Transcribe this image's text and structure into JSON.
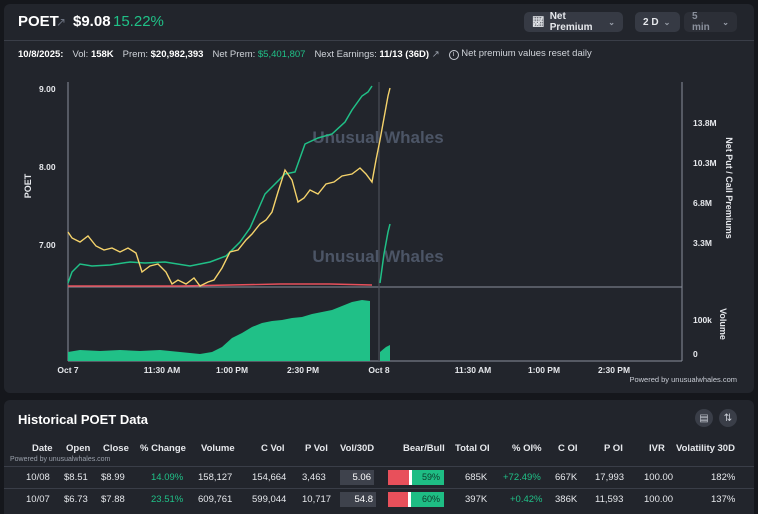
{
  "header": {
    "ticker": "POET",
    "price": "$9.08",
    "change_pct": "15.22%",
    "metric_button": "Net Premium",
    "range_button": "2 D",
    "interval_button": "5 min"
  },
  "stats": {
    "date": "10/8/2025:",
    "vol_label": "Vol:",
    "vol_value": "158K",
    "prem_label": "Prem:",
    "prem_value": "$20,982,393",
    "net_prem_label": "Net Prem:",
    "net_prem_value": "$5,401,807",
    "earnings_label": "Next Earnings:",
    "earnings_value": "11/13 (36D)",
    "note": "Net premium values reset daily"
  },
  "chart": {
    "watermark": "Unusual Whales",
    "left_axis_label": "POET",
    "right_axis_label": "Net Put / Call Premiums",
    "volume_label": "Volume",
    "powered": "Powered by unusualwhales.com",
    "price_ticks": [
      "9.00",
      "8.00",
      "7.00"
    ],
    "premium_ticks": [
      "13.8M",
      "10.3M",
      "6.8M",
      "3.3M"
    ],
    "volume_ticks": [
      "100k",
      "0"
    ],
    "time_ticks": [
      "Oct 7",
      "11:30 AM",
      "1:00 PM",
      "2:30 PM",
      "Oct 8",
      "11:30 AM",
      "1:00 PM",
      "2:30 PM"
    ]
  },
  "chart_data": {
    "type": "line",
    "x_labels": [
      "Oct 7",
      "11:30 AM",
      "1:00 PM",
      "2:30 PM",
      "Oct 8",
      "11:30 AM",
      "1:00 PM",
      "2:30 PM"
    ],
    "left_axis": {
      "label": "POET",
      "ticks": [
        7.0,
        8.0,
        9.0
      ]
    },
    "right_axis": {
      "label": "Net Put / Call Premiums",
      "ticks": [
        "3.3M",
        "6.8M",
        "10.3M",
        "13.8M"
      ]
    },
    "series": [
      {
        "name": "POET",
        "color": "#f5d36b",
        "values_oct7": [
          7.15,
          7.05,
          6.92,
          6.85,
          6.88,
          6.75,
          6.6,
          6.55,
          6.75,
          6.95,
          7.3,
          7.6,
          7.85,
          7.75,
          7.9,
          8.1,
          8.0,
          7.95,
          8.35
        ],
        "values_oct8_open": 9.08
      },
      {
        "name": "Net Call Premium",
        "color": "#20c087"
      },
      {
        "name": "Net Put Premium",
        "color": "#e8505b"
      }
    ],
    "volume": {
      "color": "#20c087",
      "ticks": [
        "0",
        "100k"
      ]
    }
  },
  "history": {
    "title": "Historical POET Data",
    "powered": "Powered by unusualwhales.com",
    "columns": [
      "Date",
      "Open",
      "Close",
      "% Change",
      "Volume",
      "C Vol",
      "P Vol",
      "Vol/30D",
      "Bear/Bull",
      "Total OI",
      "% OI%",
      "C OI",
      "P OI",
      "IVR",
      "Volatility 30D"
    ],
    "rows": [
      {
        "date": "10/08",
        "open": "$8.51",
        "close": "$8.99",
        "change": "14.09%",
        "volume": "158,127",
        "cvol": "154,664",
        "pvol": "3,463",
        "vol30": "5.06",
        "bull": "59%",
        "bull_frac": 0.59,
        "total_oi": "685K",
        "oi_pct": "+72.49%",
        "coi": "667K",
        "poi": "17,993",
        "ivr": "100.00",
        "vol30d": "182%"
      },
      {
        "date": "10/07",
        "open": "$6.73",
        "close": "$7.88",
        "change": "23.51%",
        "volume": "609,761",
        "cvol": "599,044",
        "pvol": "10,717",
        "vol30": "54.8",
        "bull": "60%",
        "bull_frac": 0.6,
        "total_oi": "397K",
        "oi_pct": "+0.42%",
        "coi": "386K",
        "poi": "11,593",
        "ivr": "100.00",
        "vol30d": "137%"
      }
    ]
  }
}
